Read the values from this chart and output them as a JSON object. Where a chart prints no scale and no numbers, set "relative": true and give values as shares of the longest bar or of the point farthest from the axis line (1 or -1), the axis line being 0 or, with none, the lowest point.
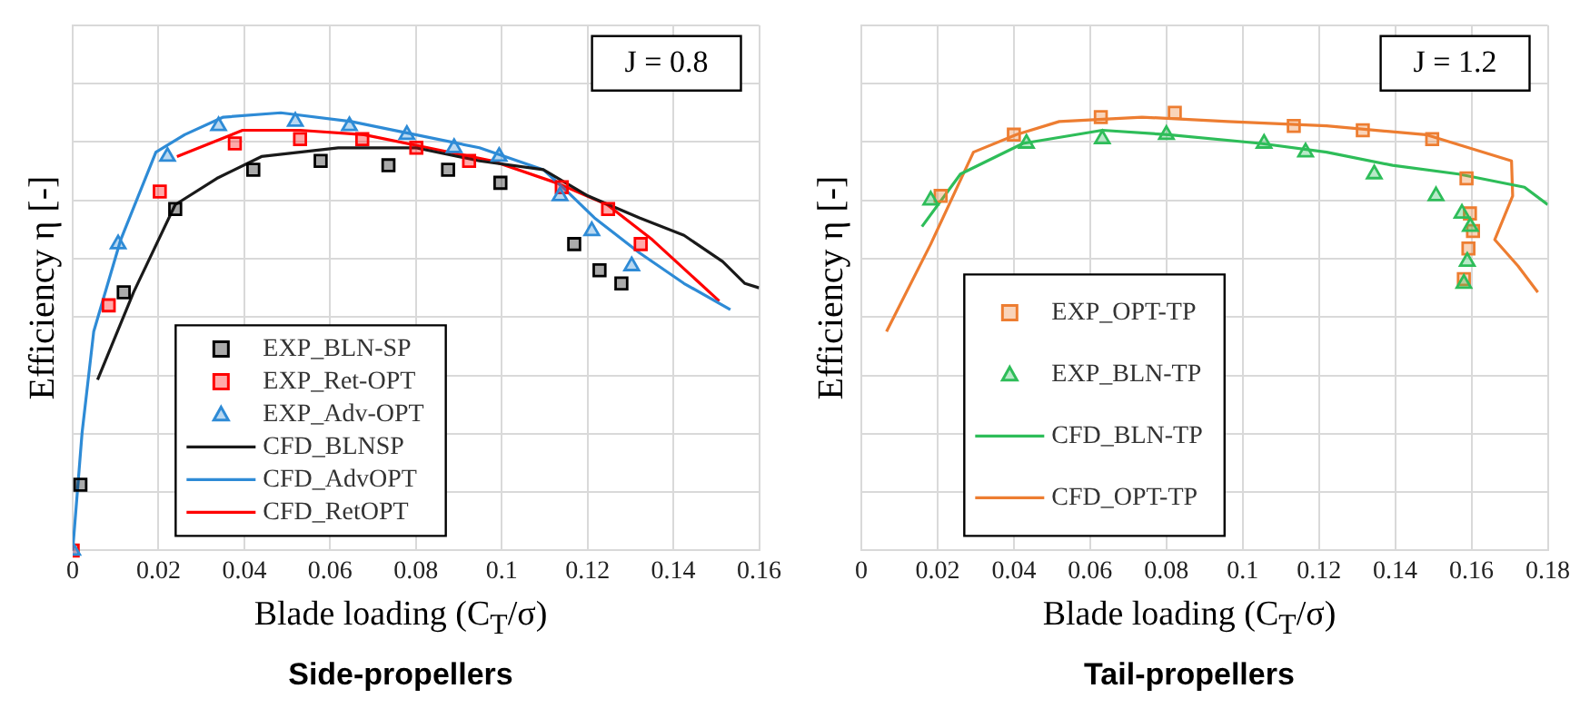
{
  "chart_data": [
    {
      "type": "line",
      "title": "Side-propellers",
      "xlabel": "Blade loading (C$_{T}$/σ)",
      "ylabel": "Efficiency η [-]",
      "relative": true,
      "xlim": [
        0,
        0.16
      ],
      "xticks": [
        0,
        0.02,
        0.04,
        0.06,
        0.08,
        0.1,
        0.12,
        0.14,
        0.16
      ],
      "grid": true,
      "legend": "bottom left",
      "annotations": [
        "J = 0.8"
      ],
      "series": [
        {
          "name": "EXP_BLN-SP",
          "type": "scatter",
          "marker": "square",
          "color": "#000000",
          "x": [
            0.0018,
            0.0119,
            0.0239,
            0.0421,
            0.0578,
            0.0736,
            0.0875,
            0.0997,
            0.1169,
            0.1228,
            0.1279
          ],
          "values": [
            0.15,
            0.59,
            0.78,
            0.87,
            0.89,
            0.88,
            0.87,
            0.84,
            0.7,
            0.64,
            0.61
          ]
        },
        {
          "name": "EXP_Ret-OPT",
          "type": "scatter",
          "marker": "square",
          "color": "#ff0000",
          "x": [
            0,
            0.0084,
            0.0203,
            0.0378,
            0.053,
            0.0675,
            0.0801,
            0.0924,
            0.114,
            0.1248,
            0.1324
          ],
          "values": [
            0,
            0.56,
            0.82,
            0.93,
            0.94,
            0.94,
            0.92,
            0.89,
            0.83,
            0.78,
            0.7
          ]
        },
        {
          "name": "EXP_Adv-OPT",
          "type": "scatter",
          "marker": "triangle",
          "color": "#2e8bd6",
          "x": [
            0,
            0.0106,
            0.0221,
            0.034,
            0.0519,
            0.0645,
            0.0779,
            0.0889,
            0.0994,
            0.1136,
            0.121,
            0.1303
          ],
          "values": [
            0,
            0.7,
            0.9,
            0.97,
            0.98,
            0.97,
            0.95,
            0.92,
            0.9,
            0.81,
            0.73,
            0.65
          ]
        },
        {
          "name": "CFD_BLNSP",
          "type": "line",
          "marker": "none",
          "color": "#1a1a1a",
          "x": [
            0.0058,
            0.0142,
            0.0239,
            0.0336,
            0.044,
            0.0619,
            0.0799,
            0.0948,
            0.1097,
            0.1201,
            0.1321,
            0.1425,
            0.1515,
            0.1567,
            0.16
          ],
          "values": [
            0.39,
            0.59,
            0.79,
            0.85,
            0.9,
            0.92,
            0.92,
            0.89,
            0.87,
            0.81,
            0.76,
            0.72,
            0.66,
            0.61,
            0.6
          ]
        },
        {
          "name": "CFD_AdvOPT",
          "type": "line",
          "marker": "none",
          "color": "#2e8bd6",
          "x": [
            0,
            0.0022,
            0.0049,
            0.0112,
            0.0194,
            0.0261,
            0.0351,
            0.0485,
            0.0649,
            0.0799,
            0.0948,
            0.1097,
            0.1142,
            0.1216,
            0.1321,
            0.1425,
            0.1533
          ],
          "values": [
            0,
            0.27,
            0.5,
            0.71,
            0.91,
            0.95,
            0.99,
            1,
            0.98,
            0.95,
            0.92,
            0.87,
            0.83,
            0.76,
            0.68,
            0.61,
            0.55
          ]
        },
        {
          "name": "CFD_RetOPT",
          "type": "line",
          "marker": "none",
          "color": "#ff0000",
          "x": [
            0.0243,
            0.0396,
            0.053,
            0.0679,
            0.0828,
            0.0978,
            0.1127,
            0.1246,
            0.1351,
            0.144,
            0.1507
          ],
          "values": [
            0.9,
            0.96,
            0.96,
            0.95,
            0.92,
            0.89,
            0.84,
            0.79,
            0.71,
            0.63,
            0.57
          ]
        }
      ]
    },
    {
      "type": "line",
      "title": "Tail-propellers",
      "xlabel": "Blade loading (C$_{T}$/σ)",
      "ylabel": "Efficiency η [-]",
      "relative": true,
      "xlim": [
        0,
        0.18
      ],
      "xticks": [
        0,
        0.02,
        0.04,
        0.06,
        0.08,
        0.1,
        0.12,
        0.14,
        0.16,
        0.18
      ],
      "grid": true,
      "legend": "bottom left",
      "annotations": [
        "J = 1.2"
      ],
      "series": [
        {
          "name": "EXP_OPT-TP",
          "type": "scatter",
          "marker": "square",
          "color": "#ed7d31",
          "x": [
            0.0208,
            0.04,
            0.0628,
            0.0822,
            0.1134,
            0.1315,
            0.1497,
            0.1587,
            0.1596,
            0.1604,
            0.1592,
            0.158
          ],
          "values": [
            0.81,
            0.95,
            0.99,
            1,
            0.97,
            0.96,
            0.94,
            0.85,
            0.77,
            0.73,
            0.69,
            0.62
          ]
        },
        {
          "name": "EXP_BLN-TP",
          "type": "scatter",
          "marker": "triangle",
          "color": "#2ebd59",
          "x": [
            0.0182,
            0.0433,
            0.0632,
            0.08,
            0.1056,
            0.1165,
            0.1345,
            0.1507,
            0.1575,
            0.1597,
            0.1589,
            0.158
          ],
          "values": [
            0.8,
            0.93,
            0.94,
            0.95,
            0.93,
            0.91,
            0.86,
            0.81,
            0.77,
            0.74,
            0.66,
            0.61
          ]
        },
        {
          "name": "CFD_BLN-TP",
          "type": "line",
          "marker": "none",
          "color": "#2ebd59",
          "x": [
            0.0159,
            0.026,
            0.0424,
            0.0632,
            0.0805,
            0.1047,
            0.122,
            0.1393,
            0.1566,
            0.1739,
            0.18
          ],
          "values": [
            0.74,
            0.86,
            0.93,
            0.96,
            0.95,
            0.93,
            0.91,
            0.88,
            0.86,
            0.83,
            0.79
          ]
        },
        {
          "name": "CFD_OPT-TP",
          "type": "line",
          "marker": "none",
          "color": "#ed7d31",
          "x": [
            0.0066,
            0.0182,
            0.0294,
            0.0407,
            0.0519,
            0.0736,
            0.0961,
            0.122,
            0.148,
            0.1705,
            0.1708,
            0.1661,
            0.1722,
            0.1774
          ],
          "values": [
            0.5,
            0.7,
            0.91,
            0.95,
            0.98,
            0.99,
            0.98,
            0.97,
            0.95,
            0.89,
            0.81,
            0.71,
            0.65,
            0.59
          ]
        }
      ]
    }
  ]
}
